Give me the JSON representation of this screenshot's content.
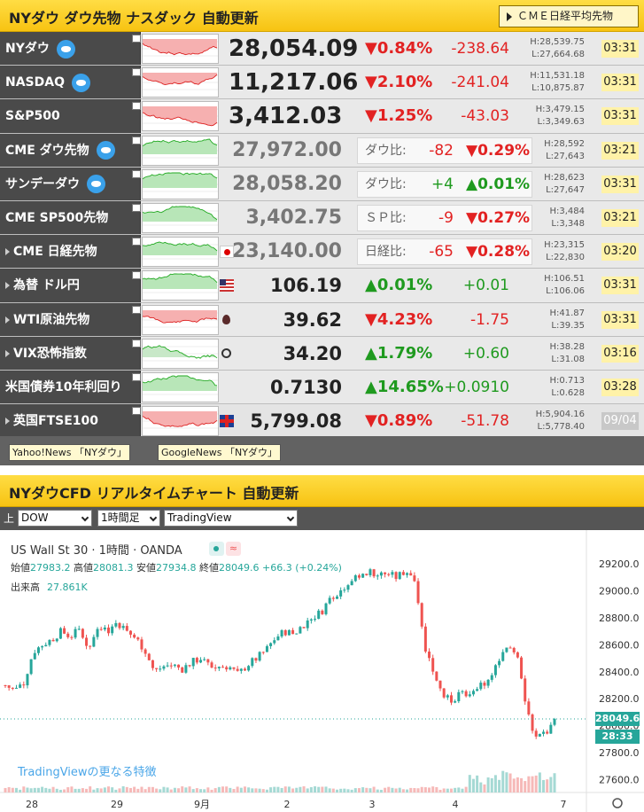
{
  "header1": {
    "title": "NYダウ ダウ先物 ナスダック 自動更新",
    "cme_button": "ＣＭＥ日経平均先物"
  },
  "rows": [
    {
      "name": "NYダウ",
      "price": "28,054.09",
      "pct": "▼0.84%",
      "chg": "-238.64",
      "high": "H:28,539.75",
      "low": "L:27,664.68",
      "time": "03:31"
    },
    {
      "name": "NASDAQ",
      "price": "11,217.06",
      "pct": "▼2.10%",
      "chg": "-241.04",
      "high": "H:11,531.18",
      "low": "L:10,875.87",
      "time": "03:31"
    },
    {
      "name": "S&P500",
      "price": "3,412.03",
      "pct": "▼1.25%",
      "chg": "-43.03",
      "high": "H:3,479.15",
      "low": "L:3,349.63",
      "time": "03:31"
    },
    {
      "name": "CME ダウ先物",
      "price": "27,972.00",
      "cmp_label": "ダウ比:",
      "cmp_chg": "-82",
      "cmp_pct": "▼0.29%",
      "high": "H:28,592",
      "low": "L:27,643",
      "time": "03:21"
    },
    {
      "name": "サンデーダウ",
      "price": "28,058.20",
      "cmp_label": "ダウ比:",
      "cmp_chg": "+4",
      "cmp_pct": "▲0.01%",
      "high": "H:28,623",
      "low": "L:27,647",
      "time": "03:31"
    },
    {
      "name": "CME SP500先物",
      "price": "3,402.75",
      "cmp_label": "ＳＰ比:",
      "cmp_chg": "-9",
      "cmp_pct": "▼0.27%",
      "high": "H:3,484",
      "low": "L:3,348",
      "time": "03:21"
    },
    {
      "name": "CME 日経先物",
      "price": "23,140.00",
      "cmp_label": "日経比:",
      "cmp_chg": "-65",
      "cmp_pct": "▼0.28%",
      "high": "H:23,315",
      "low": "L:22,830",
      "time": "03:20"
    },
    {
      "name": "為替 ドル円",
      "price": "106.19",
      "pct": "▲0.01%",
      "chg": "+0.01",
      "high": "H:106.51",
      "low": "L:106.06",
      "time": "03:31"
    },
    {
      "name": "WTI原油先物",
      "price": "39.62",
      "pct": "▼4.23%",
      "chg": "-1.75",
      "high": "H:41.87",
      "low": "L:39.35",
      "time": "03:31"
    },
    {
      "name": "VIX恐怖指数",
      "price": "34.20",
      "pct": "▲1.79%",
      "chg": "+0.60",
      "high": "H:38.28",
      "low": "L:31.08",
      "time": "03:16"
    },
    {
      "name": "米国債券10年利回り",
      "price": "0.7130",
      "pct": "▲14.65%",
      "chg": "+0.0910",
      "high": "H:0.713",
      "low": "L:0.628",
      "time": "03:28"
    },
    {
      "name": "英国FTSE100",
      "price": "5,799.08",
      "pct": "▼0.89%",
      "chg": "-51.78",
      "high": "H:5,904.16",
      "low": "L:5,778.40",
      "time": "09/04"
    }
  ],
  "news": {
    "yahoo": "Yahoo!News 「NYダウ」",
    "google": "GoogleNews 「NYダウ」"
  },
  "header2": {
    "title": "NYダウCFD リアルタイムチャート 自動更新"
  },
  "selectors": {
    "prefix": "上",
    "symbol": "DOW",
    "interval": "1時間足",
    "source": "TradingView"
  },
  "chart": {
    "title": "US Wall St 30 · 1時間 · OANDA",
    "ohlc": {
      "o_label": "始値",
      "o": "27983.2",
      "h_label": "高値",
      "h": "28081.3",
      "l_label": "安値",
      "l": "27934.8",
      "c_label": "終値",
      "c": "28049.6",
      "change": "+66.3 (+0.24%)"
    },
    "volume_label": "出来高",
    "volume": "27.861K",
    "more_link": "TradingViewの更なる特徴",
    "last_price": "28049.6",
    "countdown": "28:33",
    "badge_b": "≈"
  },
  "chart_data": {
    "type": "candlestick",
    "title": "US Wall St 30 · 1時間 · OANDA",
    "y_ticks": [
      29200,
      29000,
      28800,
      28600,
      28400,
      28200,
      28000,
      27800,
      27600
    ],
    "ylim": [
      27530,
      29320
    ],
    "x_ticks": [
      "28",
      "29",
      "9月",
      "2",
      "3",
      "4",
      "7"
    ],
    "close_path": [
      28300,
      28260,
      28320,
      28550,
      28600,
      28640,
      28700,
      28660,
      28720,
      28560,
      28760,
      28700,
      28770,
      28700,
      28650,
      28560,
      28400,
      28440,
      28450,
      28420,
      28470,
      28500,
      28430,
      28440,
      28440,
      28380,
      28450,
      28500,
      28560,
      28650,
      28700,
      28680,
      28750,
      28800,
      28850,
      28960,
      29000,
      29080,
      29100,
      29150,
      29120,
      29130,
      29100,
      29150,
      29100,
      28600,
      28400,
      28250,
      28150,
      28250,
      28200,
      28300,
      28350,
      28500,
      28600,
      28500,
      28100,
      27900,
      27950,
      28049.6
    ],
    "last": 28049.6
  }
}
